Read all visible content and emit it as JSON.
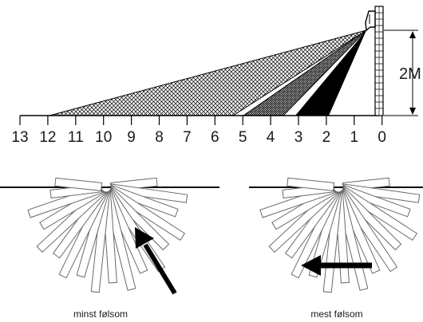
{
  "side_view": {
    "distance_labels": [
      "13",
      "12",
      "11",
      "10",
      "9",
      "8",
      "7",
      "6",
      "5",
      "4",
      "3",
      "2",
      "1",
      "0"
    ],
    "height_label": "2M"
  },
  "top_views": [
    {
      "caption": "minst følsom"
    },
    {
      "caption": "mest følsom"
    }
  ],
  "colors": {
    "ink": "#000000",
    "zone_outline": "#6a6a6a",
    "background": "#ffffff"
  }
}
